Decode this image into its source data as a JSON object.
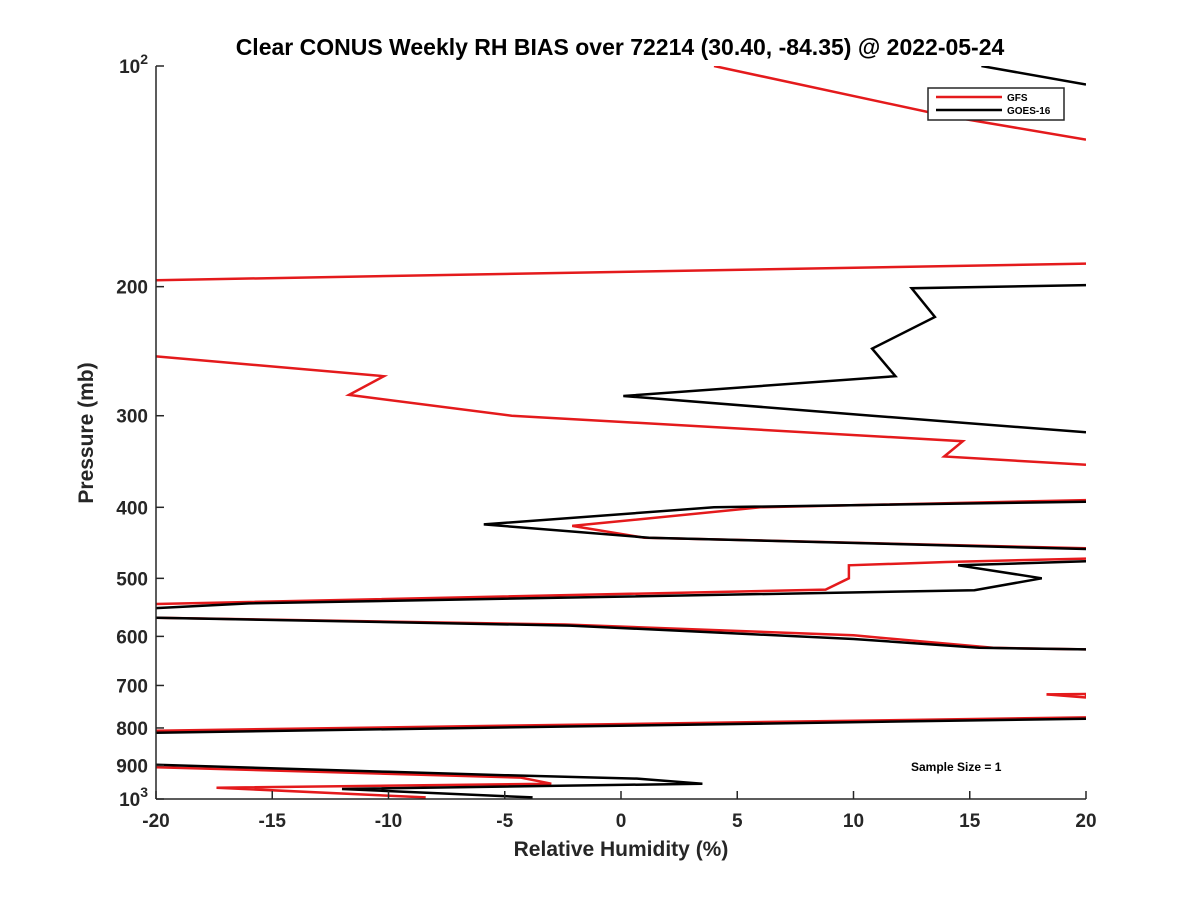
{
  "chart_data": {
    "type": "line",
    "title": "Clear CONUS Weekly RH BIAS over 72214 (30.40, -84.35) @ 2022-05-24",
    "xlabel": "Relative Humidity (%)",
    "ylabel": "Pressure (mb)",
    "xlim": [
      -20,
      20
    ],
    "ylim": [
      100,
      1000
    ],
    "yscale": "log",
    "y_reversed": true,
    "grid": false,
    "legend_position": "top-right",
    "x_ticks": [
      -20,
      -15,
      -10,
      -5,
      0,
      5,
      10,
      15,
      20
    ],
    "x_tick_labels": [
      "-20",
      "-15",
      "-10",
      "-5",
      "0",
      "5",
      "10",
      "15",
      "20"
    ],
    "y_ticks": [
      100,
      200,
      300,
      400,
      500,
      600,
      700,
      800,
      900,
      1000
    ],
    "y_tick_labels": [
      {
        "base": "10",
        "exp": "2"
      },
      {
        "text": "200"
      },
      {
        "text": "300"
      },
      {
        "text": "400"
      },
      {
        "text": "500"
      },
      {
        "text": "600"
      },
      {
        "text": "700"
      },
      {
        "text": "800"
      },
      {
        "text": "900"
      },
      {
        "base": "10",
        "exp": "3"
      }
    ],
    "annotation": "Sample Size = 1",
    "series": [
      {
        "name": "GFS",
        "color": "#e41a1c",
        "segments": [
          [
            [
              4.0,
              100
            ],
            [
              14.0,
              117
            ],
            [
              20.0,
              126
            ]
          ],
          [
            [
              -20.0,
              196
            ],
            [
              20.0,
              186
            ]
          ],
          [
            [
              -20.0,
              249
            ],
            [
              -10.2,
              265
            ],
            [
              -11.7,
              281
            ],
            [
              -4.7,
              300
            ],
            [
              14.7,
              325
            ],
            [
              13.9,
              341
            ],
            [
              20.0,
              350
            ]
          ],
          [
            [
              20.0,
              391
            ],
            [
              6.0,
              400
            ],
            [
              -2.1,
              424
            ],
            [
              1.0,
              440
            ],
            [
              20.0,
              455
            ]
          ],
          [
            [
              20.0,
              470
            ],
            [
              14.0,
              475
            ],
            [
              9.8,
              480
            ],
            [
              9.8,
              500
            ],
            [
              8.8,
              518
            ],
            [
              -20.0,
              542
            ]
          ],
          [
            [
              -20.0,
              566
            ],
            [
              -2.4,
              578
            ],
            [
              10.0,
              598
            ],
            [
              16.0,
              622
            ],
            [
              20.0,
              625
            ]
          ],
          [
            [
              18.3,
              720
            ],
            [
              20.0,
              719
            ]
          ],
          [
            [
              20.0,
              719
            ],
            [
              20.0,
              727
            ]
          ],
          [
            [
              18.3,
              720
            ],
            [
              20.0,
              727
            ]
          ],
          [
            [
              20.0,
              774
            ],
            [
              -20.0,
              807
            ]
          ],
          [
            [
              -20.0,
              905
            ],
            [
              -4.3,
              935
            ],
            [
              -3.0,
              953
            ],
            [
              -17.4,
              965
            ],
            [
              -8.4,
              995
            ]
          ]
        ]
      },
      {
        "name": "GOES-16",
        "color": "#000000",
        "segments": [
          [
            [
              15.5,
              100
            ],
            [
              20.0,
              106
            ]
          ],
          [
            [
              20.0,
              199
            ],
            [
              12.5,
              201
            ],
            [
              13.5,
              220
            ],
            [
              10.8,
              243
            ],
            [
              11.8,
              265
            ],
            [
              0.1,
              282
            ],
            [
              10.8,
              300
            ],
            [
              20.0,
              316
            ]
          ],
          [
            [
              20.0,
              393
            ],
            [
              4.0,
              400
            ],
            [
              -5.9,
              422
            ],
            [
              1.2,
              440
            ],
            [
              20.0,
              456
            ]
          ],
          [
            [
              20.0,
              474
            ],
            [
              14.5,
              480
            ],
            [
              18.1,
              500
            ],
            [
              15.2,
              519
            ],
            [
              -16.0,
              541
            ],
            [
              -20.0,
              549
            ]
          ],
          [
            [
              -20.0,
              566
            ],
            [
              -2.2,
              580
            ],
            [
              10.0,
              605
            ],
            [
              15.4,
              622
            ],
            [
              20.0,
              625
            ]
          ],
          [
            [
              20.0,
              777
            ],
            [
              -20.0,
              812
            ]
          ],
          [
            [
              -20.0,
              898
            ],
            [
              -10.0,
              918
            ],
            [
              -5.0,
              928
            ],
            [
              0.7,
              938
            ],
            [
              3.5,
              953
            ],
            [
              -12.0,
              969
            ],
            [
              -3.8,
              995
            ]
          ]
        ]
      }
    ]
  }
}
